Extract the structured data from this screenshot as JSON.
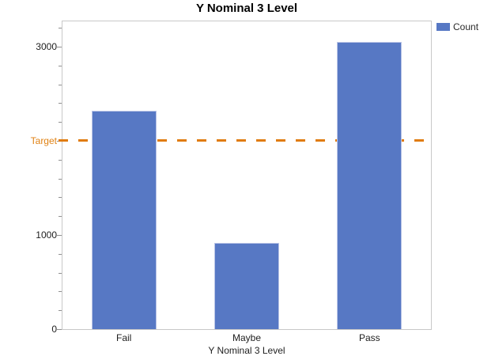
{
  "legend": {
    "label": "Count"
  },
  "chart_data": {
    "type": "bar",
    "title": "Y Nominal 3 Level",
    "categories": [
      "Fail",
      "Maybe",
      "Pass"
    ],
    "series": [
      {
        "name": "Count",
        "values": [
          2320,
          915,
          3050
        ]
      }
    ],
    "xlabel": "Y Nominal 3 Level",
    "ylabel": "",
    "ylim": [
      0,
      3280
    ],
    "yticks_labeled": [
      0,
      1000,
      3000
    ],
    "minor_tick_step": 200,
    "grid": false,
    "legend_position": "top-right",
    "bar_color": "#5778C4",
    "reference_line": {
      "label": "Target",
      "value": 2000,
      "color": "#E07C10",
      "style": "dashed"
    }
  }
}
